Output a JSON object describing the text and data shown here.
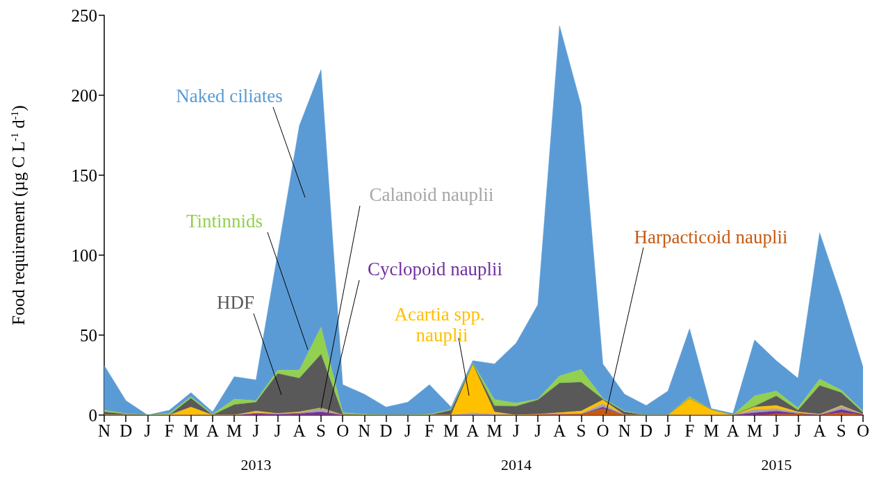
{
  "chart_data": {
    "type": "area",
    "stacked": true,
    "ylabel": "Food requirement (µg C L$^{-1}$ d$^{-1}$)",
    "categories": [
      "N",
      "D",
      "J",
      "F",
      "M",
      "A",
      "M",
      "J",
      "J",
      "A",
      "S",
      "O",
      "N",
      "D",
      "J",
      "F",
      "M",
      "A",
      "M",
      "J",
      "J",
      "A",
      "S",
      "O",
      "N",
      "D",
      "J",
      "F",
      "M",
      "A",
      "M",
      "J",
      "J",
      "A",
      "S",
      "O"
    ],
    "series": [
      {
        "name": "Harpacticoid nauplii",
        "color": "#c55a11",
        "values": [
          0,
          0,
          0,
          0,
          0,
          0,
          0,
          0,
          0,
          0,
          0,
          0,
          0,
          0,
          0,
          0,
          0,
          0,
          0,
          0,
          0.5,
          0.5,
          0.5,
          4,
          0,
          0,
          0,
          0,
          0,
          0,
          0,
          0.5,
          0.5,
          0,
          1.5,
          0
        ]
      },
      {
        "name": "Cyclopoid nauplii",
        "color": "#7030a0",
        "values": [
          0,
          0,
          0,
          0,
          0,
          0,
          0,
          1,
          0.5,
          1,
          2,
          0,
          0,
          0,
          0,
          0,
          0,
          0,
          0,
          0,
          0,
          0,
          0,
          1,
          0,
          0,
          0,
          0,
          0,
          0,
          1.5,
          2,
          0.5,
          0,
          2,
          0.5
        ]
      },
      {
        "name": "Calanoid nauplii",
        "color": "#a6a6a6",
        "values": [
          0,
          0,
          0,
          0,
          0,
          0,
          0,
          0.5,
          0.5,
          0.5,
          2.5,
          0,
          0,
          0,
          0,
          0,
          0,
          1.5,
          0.5,
          0,
          0,
          0,
          0.5,
          2,
          0,
          0,
          0,
          0,
          0,
          0,
          2,
          1.5,
          0.5,
          0.5,
          2,
          0
        ]
      },
      {
        "name": "Acartia spp. nauplii",
        "color": "#ffc000",
        "values": [
          0,
          0,
          0,
          0,
          5,
          0,
          0,
          1,
          0,
          0.5,
          0,
          0,
          0,
          0,
          0,
          0,
          0,
          30,
          1.5,
          0,
          0,
          1,
          1.5,
          2.5,
          0,
          0,
          0,
          10.5,
          3.5,
          0,
          1.5,
          2,
          0.5,
          0,
          0.5,
          0
        ]
      },
      {
        "name": "HDF",
        "color": "#595959",
        "values": [
          2,
          0.5,
          0,
          0,
          5.5,
          0,
          6.5,
          5.5,
          25,
          21,
          33.5,
          0.5,
          0,
          0,
          0,
          0,
          3,
          0.5,
          3.7,
          5.5,
          9,
          18.5,
          18,
          0.5,
          2,
          0,
          0,
          0,
          0,
          0,
          0.5,
          6,
          1,
          18,
          8,
          1
        ]
      },
      {
        "name": "Tintinnids",
        "color": "#92d050",
        "values": [
          1,
          0.5,
          0,
          1,
          1,
          0.5,
          3.5,
          1,
          2,
          5,
          17,
          1,
          0.5,
          0,
          0,
          0.5,
          0.5,
          0.5,
          4,
          2,
          0.5,
          4.5,
          8,
          0.5,
          0.5,
          0,
          0,
          1,
          0,
          0,
          6.5,
          3,
          1.5,
          4,
          1.5,
          1
        ]
      },
      {
        "name": "Naked ciliates",
        "color": "#5b9bd5",
        "values": [
          28,
          8,
          0,
          2,
          2.5,
          1.5,
          14,
          13,
          73,
          153,
          161,
          17.5,
          12.5,
          5,
          8,
          18.5,
          1.5,
          1.5,
          22.3,
          37.5,
          59,
          219,
          165,
          21.5,
          10.5,
          6,
          15,
          42.5,
          0.5,
          1,
          35,
          19,
          18.5,
          91.5,
          58.5,
          27.5
        ]
      }
    ],
    "ylim": [
      0,
      250
    ],
    "yticks": [
      0,
      50,
      100,
      150,
      200,
      250
    ],
    "annotations": [
      "2013",
      "2014",
      "2015"
    ],
    "grid": false,
    "legend": false
  }
}
